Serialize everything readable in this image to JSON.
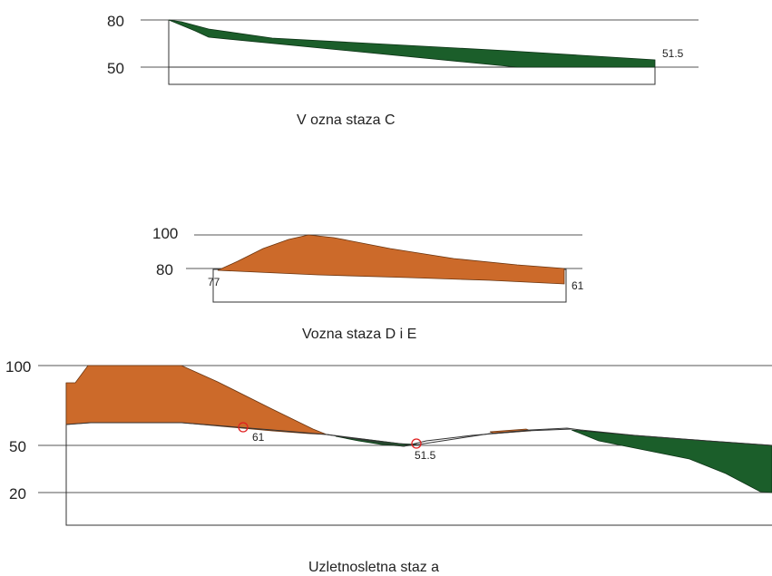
{
  "colors": {
    "cut": "#cc6a2a",
    "fill": "#1b5e2a",
    "marker": "#e02020"
  },
  "panel_c": {
    "caption": "V ozna staza C",
    "y_ticks": [
      "80",
      "50"
    ],
    "end_elevation": "51.5"
  },
  "panel_de": {
    "caption": "Vozna staza D i E",
    "y_ticks": [
      "100",
      "80"
    ],
    "start_elevation": "77",
    "end_elevation": "61"
  },
  "panel_runway": {
    "caption": "Uzletnosletna staz a",
    "y_ticks": [
      "100",
      "50",
      "20"
    ],
    "point_a": "61",
    "point_b": "51.5"
  }
}
